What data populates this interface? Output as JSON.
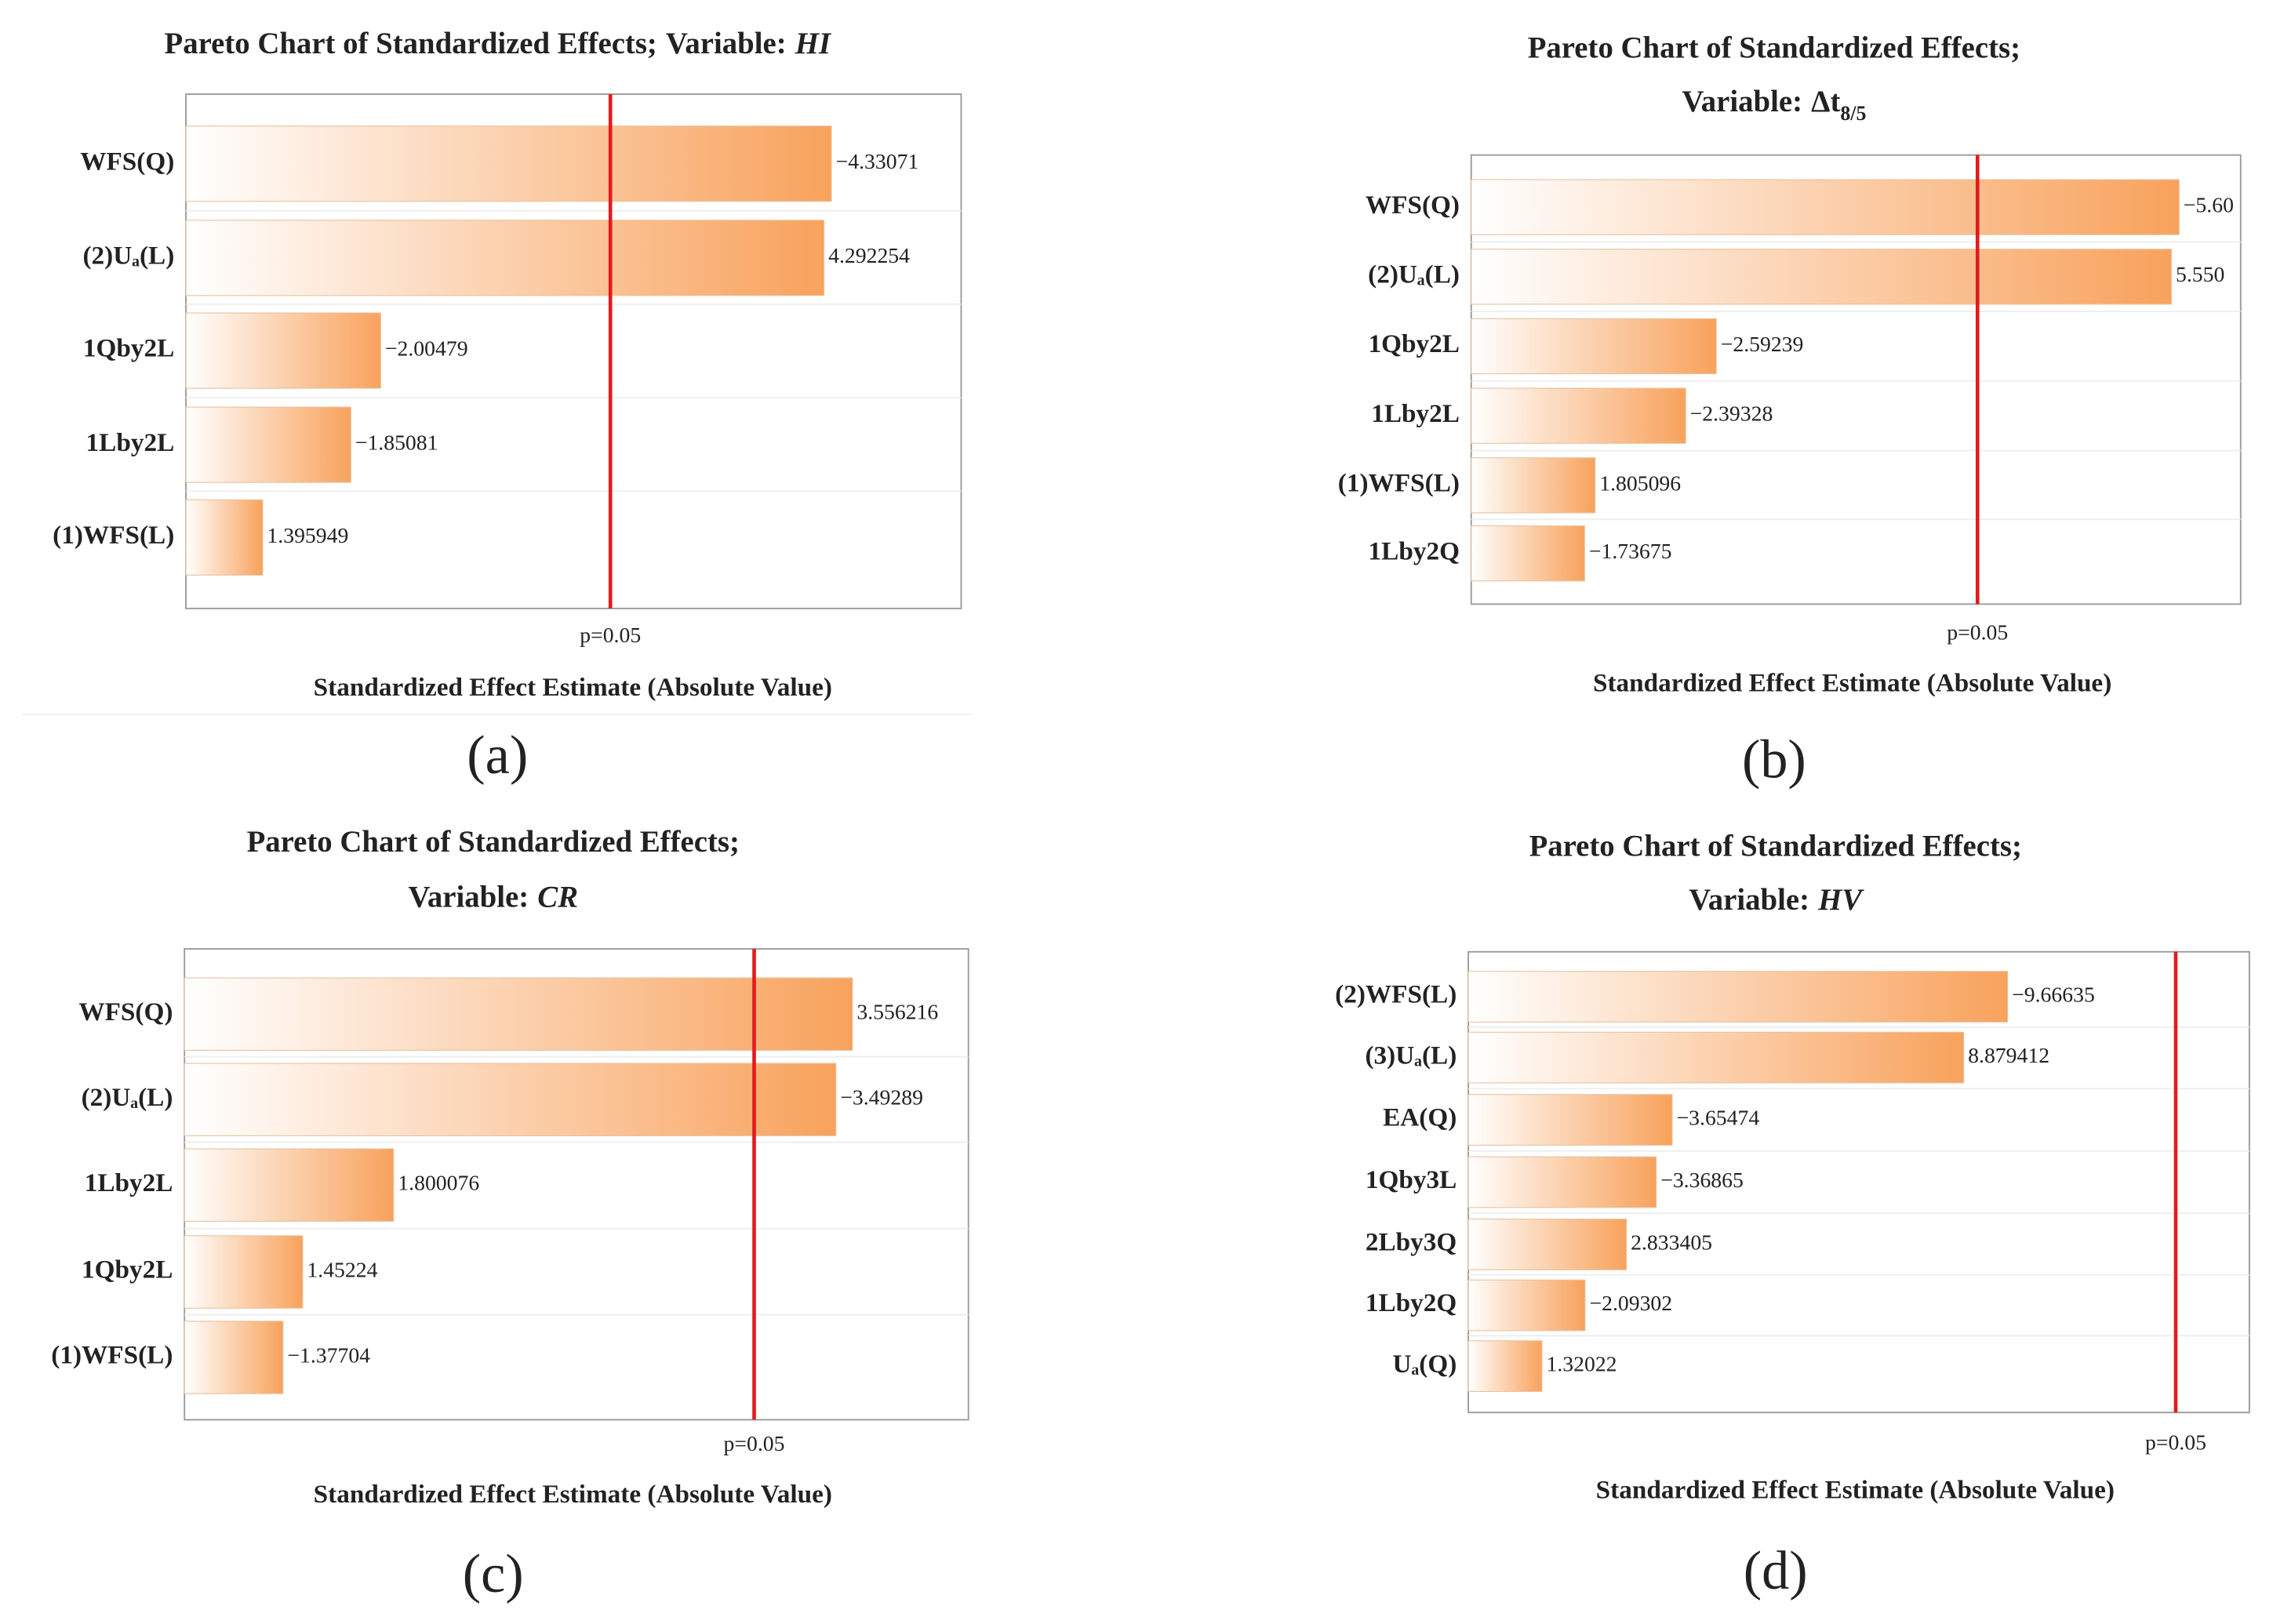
{
  "chart_data": [
    {
      "type": "bar",
      "orientation": "horizontal",
      "title": "Pareto Chart of Standardized Effects;",
      "variable_label": "Variable:",
      "variable": "HI",
      "categories": [
        "WFS(Q)",
        "(2)Uₐ(L)",
        "1Qby2L",
        "1Lby2L",
        "(1)WFS(L)"
      ],
      "values": [
        -4.33071,
        4.292254,
        -2.00479,
        -1.85081,
        1.395949
      ],
      "value_labels": [
        "−4.33071",
        "4.292254",
        "−2.00479",
        "−1.85081",
        "1.395949"
      ],
      "color": "#f8a25c",
      "xlim": [
        1.0,
        5.0
      ],
      "reference_line": {
        "value": 3.19,
        "label": "p=0.05",
        "color": "#e31a1c"
      },
      "x_label": "Standardized Effect Estimate (Absolute Value)",
      "panel_label": "(a)"
    },
    {
      "type": "bar",
      "orientation": "horizontal",
      "title": "Pareto Chart of Standardized Effects;",
      "variable_label": "Variable:",
      "variable": "Δt",
      "variable_subscript": "8/5",
      "categories": [
        "WFS(Q)",
        "(2)Uₐ(L)",
        "1Qby2L",
        "1Lby2L",
        "(1)WFS(L)",
        "1Lby2Q"
      ],
      "values": [
        -5.6,
        5.55,
        -2.59239,
        -2.39328,
        1.805096,
        -1.73675
      ],
      "value_labels": [
        "−5.60",
        "5.550",
        "−2.59239",
        "−2.39328",
        "1.805096",
        "−1.73675"
      ],
      "color": "#f8a25c",
      "xlim": [
        1.0,
        6.0
      ],
      "reference_line": {
        "value": 4.29,
        "label": "p=0.05",
        "color": "#e31a1c"
      },
      "x_label": "Standardized Effect Estimate (Absolute Value)",
      "panel_label": "(b)"
    },
    {
      "type": "bar",
      "orientation": "horizontal",
      "title": "Pareto Chart of Standardized Effects;",
      "variable_label": "Variable:",
      "variable": "CR",
      "categories": [
        "WFS(Q)",
        "(2)Uₐ(L)",
        "1Lby2L",
        "1Qby2L",
        "(1)WFS(L)"
      ],
      "values": [
        3.556216,
        -3.49289,
        1.800076,
        1.45224,
        -1.37704
      ],
      "value_labels": [
        "3.556216",
        "−3.49289",
        "1.800076",
        "1.45224",
        "−1.37704"
      ],
      "color": "#f8a25c",
      "xlim": [
        1.0,
        4.0
      ],
      "reference_line": {
        "value": 3.18,
        "label": "p=0.05",
        "color": "#e31a1c"
      },
      "x_label": "Standardized Effect Estimate (Absolute Value)",
      "panel_label": "(c)"
    },
    {
      "type": "bar",
      "orientation": "horizontal",
      "title": "Pareto Chart of Standardized Effects;",
      "variable_label": "Variable:",
      "variable": "HV",
      "categories": [
        "(2)WFS(L)",
        "(3)Uₐ(L)",
        "EA(Q)",
        "1Qby3L",
        "2Lby3Q",
        "1Lby2Q",
        "Uₐ(Q)"
      ],
      "values": [
        -9.66635,
        8.879412,
        -3.65474,
        -3.36865,
        2.833405,
        -2.09302,
        1.32022
      ],
      "value_labels": [
        "−9.66635",
        "8.879412",
        "−3.65474",
        "−3.36865",
        "2.833405",
        "−2.09302",
        "1.32022"
      ],
      "color": "#f8a25c",
      "xlim": [
        0,
        14
      ],
      "reference_line": {
        "value": 12.68,
        "label": "p=0.05",
        "color": "#e31a1c"
      },
      "x_label": "Standardized Effect Estimate (Absolute Value)",
      "panel_label": "(d)"
    }
  ]
}
